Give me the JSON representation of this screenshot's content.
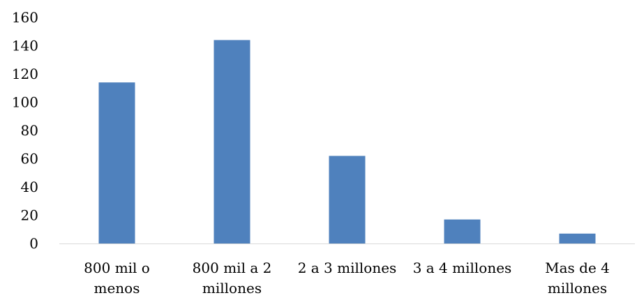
{
  "chart_data": {
    "type": "bar",
    "title": "",
    "xlabel": "",
    "ylabel": "",
    "categories": [
      [
        "800 mil o",
        "menos"
      ],
      [
        "800 mil a 2",
        "millones"
      ],
      [
        "2 a 3 millones"
      ],
      [
        "3 a 4 millones"
      ],
      [
        "Mas de 4",
        "millones"
      ]
    ],
    "values": [
      114,
      144,
      62,
      17,
      7
    ],
    "ylim": [
      0,
      160
    ],
    "yticks": [
      0,
      20,
      40,
      60,
      80,
      100,
      120,
      140,
      160
    ],
    "grid": false,
    "legend": "none",
    "colors": {
      "bar": "#4F81BD",
      "axis": "#D9D9D9",
      "text": "#000000"
    }
  }
}
